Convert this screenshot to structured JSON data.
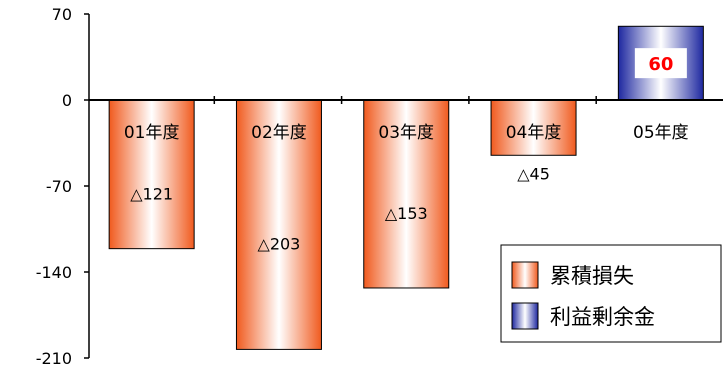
{
  "chart_data": {
    "type": "bar",
    "categories": [
      "01年度",
      "02年度",
      "03年度",
      "04年度",
      "05年度"
    ],
    "values": [
      -121,
      -203,
      -153,
      -45,
      60
    ],
    "data_labels": [
      "△121",
      "△203",
      "△153",
      "△45",
      "60"
    ],
    "yticks": [
      70,
      0,
      -70,
      -140,
      -210
    ],
    "ytick_labels": [
      "70",
      "0",
      "-70",
      "-140",
      "-210"
    ],
    "ylim": [
      -210,
      70
    ],
    "legend": {
      "placement": "bottom-right",
      "entries": [
        {
          "label": "累積損失",
          "color": "#f05a1e"
        },
        {
          "label": "利益剰余金",
          "color": "#1e28a0"
        }
      ]
    },
    "colors": {
      "loss": "#f05a1e",
      "surplus": "#1e28a0",
      "label_positive": "#ff0000"
    }
  }
}
